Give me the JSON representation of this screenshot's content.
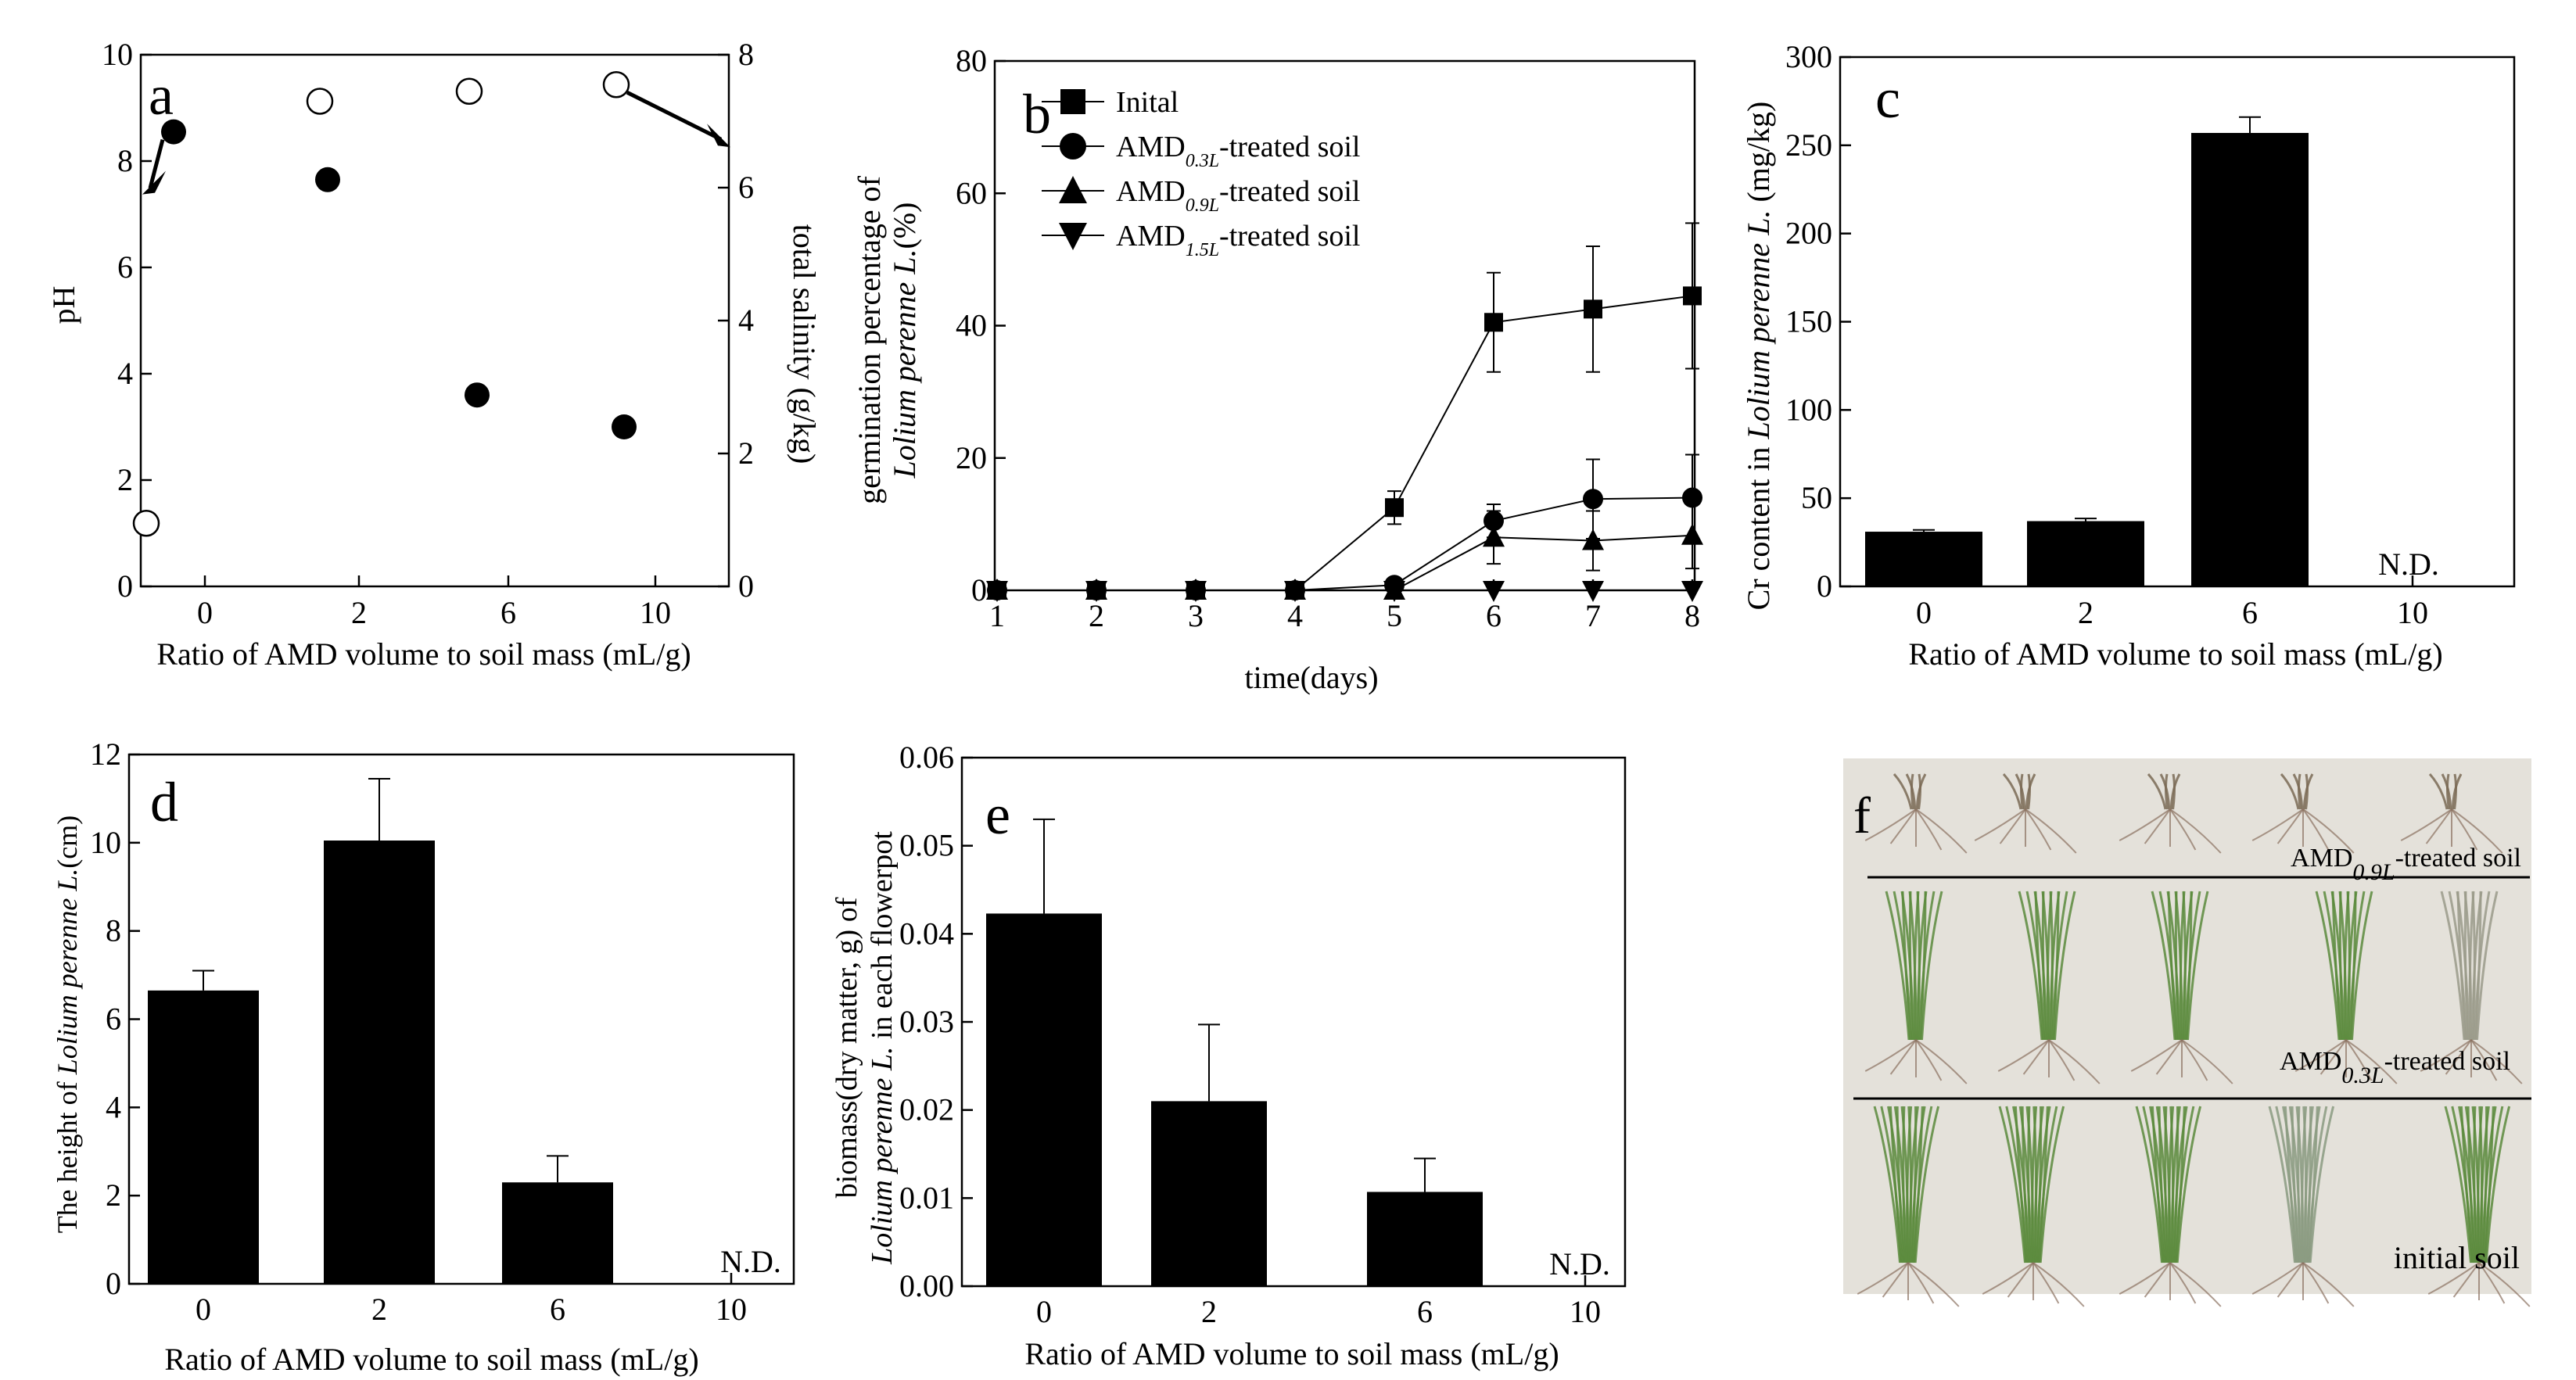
{
  "chart_data": [
    {
      "panel": "a",
      "type": "scatter",
      "xlabel": "Ratio of AMD volume to soil mass (mL/g)",
      "ylabel": "pH",
      "y2label": "total salinity (g/kg)",
      "categories": [
        "0",
        "2",
        "6",
        "10"
      ],
      "ylim": [
        0,
        10
      ],
      "y2lim": [
        0,
        8
      ],
      "yticks": [
        "0",
        "2",
        "4",
        "6",
        "8",
        "10"
      ],
      "y2ticks": [
        "0",
        "2",
        "4",
        "6",
        "8"
      ],
      "series": [
        {
          "name": "pH",
          "marker": "filled-circle",
          "axis": "left",
          "values": [
            8.55,
            7.65,
            3.6,
            3.0
          ]
        },
        {
          "name": "total salinity",
          "marker": "open-circle",
          "axis": "right",
          "values": [
            0.95,
            7.3,
            7.45,
            7.55
          ]
        }
      ]
    },
    {
      "panel": "b",
      "type": "line",
      "xlabel": "time(days)",
      "ylabel_line1": "germination percentage of",
      "ylabel_line2": "Lolium perenne L.",
      "ylabel_unit": "(%)",
      "x": [
        1,
        2,
        3,
        4,
        5,
        6,
        7,
        8
      ],
      "xticks": [
        "1",
        "2",
        "3",
        "4",
        "5",
        "6",
        "7",
        "8"
      ],
      "ylim": [
        0,
        80
      ],
      "yticks": [
        "0",
        "20",
        "40",
        "60",
        "80"
      ],
      "series": [
        {
          "name": "Inital",
          "prefix": "",
          "sub": "",
          "suffix": "Inital",
          "marker": "square",
          "values": [
            0,
            0,
            0,
            0,
            12.5,
            40.5,
            42.5,
            44.5
          ],
          "errors": [
            0,
            0,
            0,
            0,
            2.5,
            7.5,
            9.5,
            11
          ]
        },
        {
          "name": "AMD0.3L-treated soil",
          "prefix": "AMD",
          "sub": "0.3L",
          "suffix": "-treated soil",
          "marker": "circle",
          "values": [
            0,
            0,
            0,
            0,
            0.8,
            10.5,
            13.8,
            14
          ],
          "errors": [
            0,
            0,
            0,
            0,
            0,
            2.5,
            6,
            6.5
          ]
        },
        {
          "name": "AMD0.9L-treated soil",
          "prefix": "AMD",
          "sub": "0.9L",
          "suffix": "-treated soil",
          "marker": "triangle-up",
          "values": [
            0,
            0,
            0,
            0,
            0,
            8,
            7.5,
            8.3
          ],
          "errors": [
            0,
            0,
            0,
            0,
            0,
            4,
            4.5,
            5
          ]
        },
        {
          "name": "AMD1.5L-treated soil",
          "prefix": "AMD",
          "sub": "1.5L",
          "suffix": "-treated soil",
          "marker": "triangle-down",
          "values": [
            0,
            0,
            0,
            0,
            0,
            0,
            0,
            0
          ],
          "errors": [
            0,
            0,
            0,
            0,
            0,
            0,
            0,
            0
          ]
        }
      ]
    },
    {
      "panel": "c",
      "type": "bar",
      "xlabel": "Ratio of AMD volume to soil mass (mL/g)",
      "ylabel_pre": "Cr content in ",
      "ylabel_italic": "Lolium perenne L.",
      "ylabel_post": " (mg/kg)",
      "categories": [
        "0",
        "2",
        "6",
        "10"
      ],
      "values": [
        31,
        37,
        257,
        null
      ],
      "errors": [
        1,
        1.5,
        9,
        0
      ],
      "annotation": "N.D.",
      "ylim": [
        0,
        300
      ],
      "yticks": [
        "0",
        "50",
        "100",
        "150",
        "200",
        "250",
        "300"
      ]
    },
    {
      "panel": "d",
      "type": "bar",
      "xlabel": "Ratio of AMD volume to soil mass (mL/g)",
      "ylabel_pre": "The height of ",
      "ylabel_italic": "Lolium perenne L.",
      "ylabel_post": "(cm)",
      "categories": [
        "0",
        "2",
        "6",
        "10"
      ],
      "values": [
        6.65,
        10.05,
        2.3,
        null
      ],
      "errors": [
        0.45,
        1.4,
        0.6,
        0
      ],
      "annotation": "N.D.",
      "ylim": [
        0,
        12
      ],
      "yticks": [
        "0",
        "2",
        "4",
        "6",
        "8",
        "10",
        "12"
      ]
    },
    {
      "panel": "e",
      "type": "bar",
      "xlabel": "Ratio of AMD volume to soil mass (mL/g)",
      "ylabel_line1": "biomass(dry matter, g) of",
      "ylabel_line2_italic": "Lolium perenne L.",
      "ylabel_line2_post": " in each flowerpot",
      "categories": [
        "0",
        "2",
        "6",
        "10"
      ],
      "values": [
        0.0423,
        0.021,
        0.0107,
        null
      ],
      "errors": [
        0.0107,
        0.0087,
        0.0038,
        0
      ],
      "annotation": "N.D.",
      "ylim": [
        0,
        0.06
      ],
      "yticks": [
        "0.00",
        "0.01",
        "0.02",
        "0.03",
        "0.04",
        "0.05",
        "0.06"
      ]
    }
  ],
  "panel_f": {
    "letter": "f",
    "labels": [
      {
        "prefix": "AMD",
        "sub": "0.9L",
        "suffix": "-treated soil"
      },
      {
        "prefix": "AMD",
        "sub": "0.3L",
        "suffix": "-treated soil"
      },
      {
        "prefix": "initial soil",
        "sub": "",
        "suffix": ""
      }
    ]
  },
  "colors": {
    "ink": "#000000",
    "photo_background": "#e4e1da",
    "plant_green": "#5a8a3c"
  }
}
